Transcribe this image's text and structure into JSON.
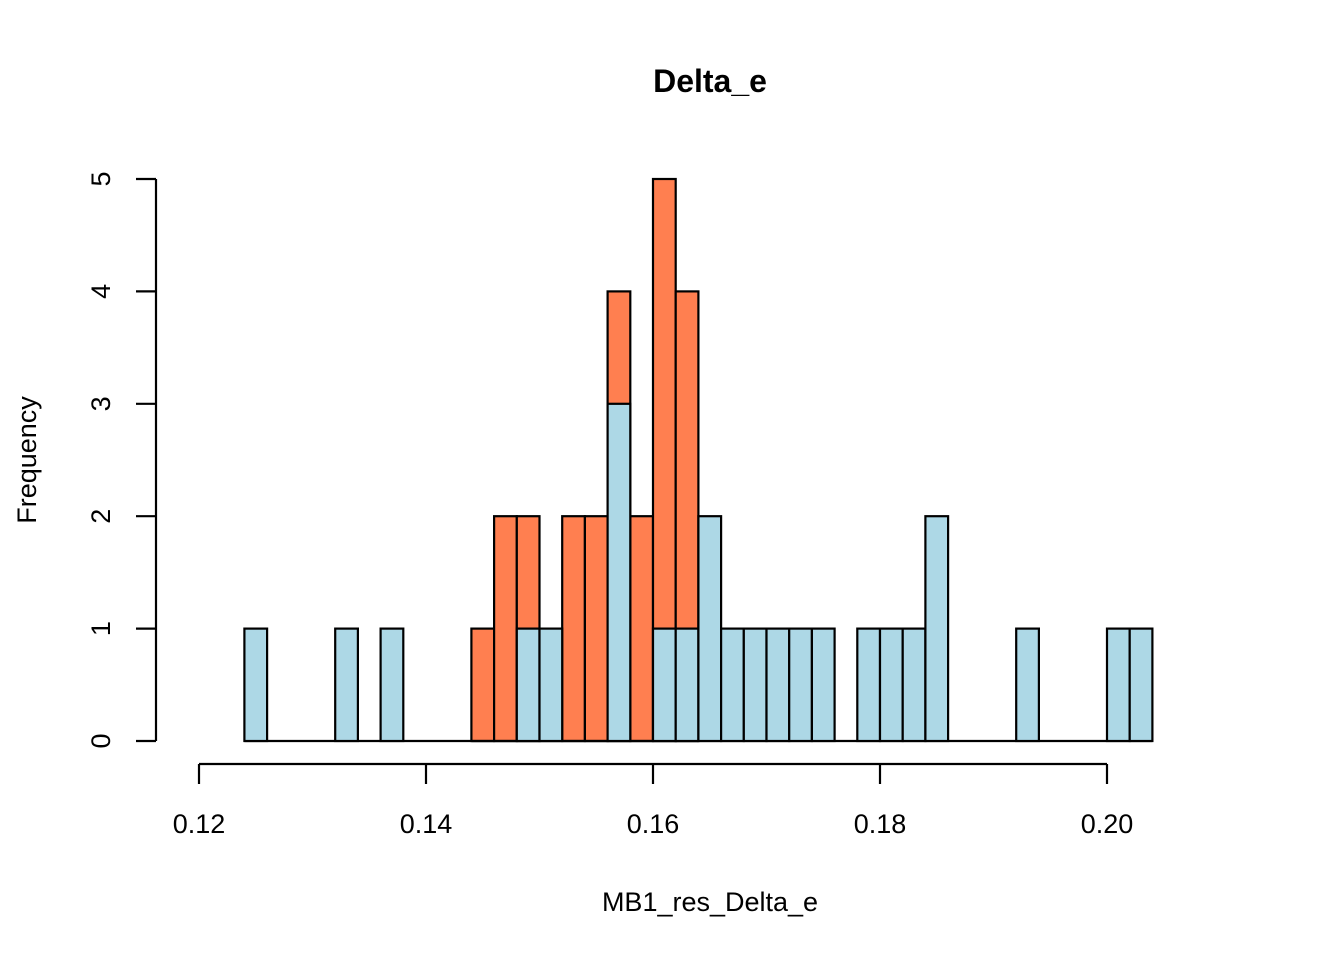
{
  "chart_data": {
    "type": "bar",
    "subtype": "overlaid-histogram",
    "title": "Delta_e",
    "xlabel": "MB1_res_Delta_e",
    "ylabel": "Frequency",
    "xlim": [
      0.12,
      0.2
    ],
    "ylim": [
      0,
      5
    ],
    "x_ticks": [
      0.12,
      0.14,
      0.16,
      0.18,
      0.2
    ],
    "x_tick_labels": [
      "0.12",
      "0.14",
      "0.16",
      "0.18",
      "0.20"
    ],
    "y_ticks": [
      0,
      1,
      2,
      3,
      4,
      5
    ],
    "y_tick_labels": [
      "0",
      "1",
      "2",
      "3",
      "4",
      "5"
    ],
    "grid": false,
    "bin_width": 0.002,
    "series": [
      {
        "name": "coral",
        "color": "#FF7F50",
        "bin_start": 0.144,
        "values": [
          1,
          2,
          2,
          0,
          2,
          2,
          4,
          2,
          5,
          4
        ]
      },
      {
        "name": "lightblue",
        "color": "#ADD8E6",
        "bin_start": 0.124,
        "values": [
          1,
          0,
          0,
          0,
          1,
          0,
          1,
          0,
          0,
          0,
          0,
          0,
          1,
          1,
          0,
          0,
          3,
          0,
          1,
          1,
          2,
          1,
          1,
          1,
          1,
          1,
          0,
          1,
          1,
          1,
          2,
          0,
          0,
          0,
          1,
          0,
          0,
          0,
          1,
          1
        ]
      }
    ]
  }
}
